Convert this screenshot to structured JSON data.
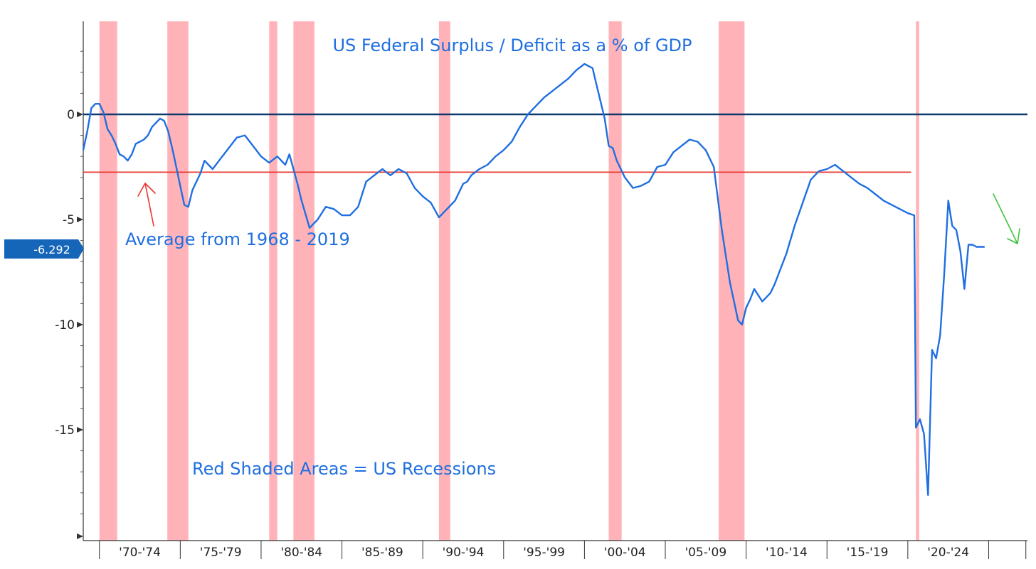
{
  "chart_data": {
    "type": "line",
    "title": "US Federal Surplus / Deficit as a % of GDP",
    "annotations": {
      "average_label": "Average from 1968 - 2019",
      "recession_note": "Red Shaded Areas = US Recessions"
    },
    "current_value_label": "-6.292",
    "current_value": -6.292,
    "average_value": -2.75,
    "average_period": [
      1968,
      2019
    ],
    "xlim": [
      1968.5,
      2026.9
    ],
    "ylim": [
      -20,
      4.5
    ],
    "y_ticks": [
      0,
      -5,
      -10,
      -15
    ],
    "x_ticks": [
      "'70-'74",
      "'75-'79",
      "'80-'84",
      "'85-'89",
      "'90-'94",
      "'95-'99",
      "'00-'04",
      "'05-'09",
      "'10-'14",
      "'15-'19",
      "'20-'24"
    ],
    "x_tick_bounds": [
      1969.5,
      1974.5,
      1979.5,
      1984.5,
      1989.5,
      1994.5,
      1999.5,
      2004.5,
      2009.5,
      2014.5,
      2019.5,
      2024.5,
      2026.8
    ],
    "recessions": [
      [
        1969.5,
        1970.6
      ],
      [
        1973.7,
        1975.0
      ],
      [
        1980.0,
        1980.5
      ],
      [
        1981.5,
        1982.8
      ],
      [
        1990.5,
        1991.2
      ],
      [
        2001.0,
        2001.8
      ],
      [
        2007.8,
        2009.4
      ],
      [
        2020.0,
        2020.2
      ]
    ],
    "colors": {
      "line": "#1f6fe0",
      "zero_line": "#0e3a6e",
      "average_line": "#e8382f",
      "recession": "#ff9aa0",
      "current_badge": "#1566b8",
      "red_arrow": "#e8382f",
      "green_arrow": "#3ec43e"
    },
    "series": [
      {
        "x": [
          1968.5,
          1968.75,
          1969.0,
          1969.25,
          1969.5,
          1969.75,
          1970.0,
          1970.25,
          1970.5,
          1970.75,
          1971.0,
          1971.25,
          1971.5,
          1971.75,
          1972.0,
          1972.25,
          1972.5,
          1972.75,
          1973.0,
          1973.25,
          1973.5,
          1973.75,
          1974.0,
          1974.25,
          1974.5,
          1974.75,
          1975.0,
          1975.25,
          1975.5,
          1975.75,
          1976.0,
          1976.5,
          1977.0,
          1977.5,
          1978.0,
          1978.5,
          1979.0,
          1979.5,
          1980.0,
          1980.5,
          1981.0,
          1981.25,
          1981.5,
          1981.75,
          1982.0,
          1982.5,
          1983.0,
          1983.5,
          1984.0,
          1984.5,
          1985.0,
          1985.5,
          1986.0,
          1986.5,
          1987.0,
          1987.5,
          1988.0,
          1988.5,
          1989.0,
          1989.5,
          1990.0,
          1990.5,
          1991.0,
          1991.5,
          1992.0,
          1992.25,
          1992.5,
          1993.0,
          1993.5,
          1994.0,
          1994.5,
          1995.0,
          1995.5,
          1996.0,
          1996.5,
          1997.0,
          1997.5,
          1998.0,
          1998.5,
          1999.0,
          1999.5,
          2000.0,
          2000.25,
          2000.5,
          2000.75,
          2001.0,
          2001.25,
          2001.5,
          2002.0,
          2002.5,
          2003.0,
          2003.5,
          2004.0,
          2004.5,
          2005.0,
          2005.5,
          2006.0,
          2006.5,
          2007.0,
          2007.5,
          2008.0,
          2008.5,
          2009.0,
          2009.25,
          2009.5,
          2009.75,
          2010.0,
          2010.5,
          2011.0,
          2011.25,
          2011.5,
          2012.0,
          2012.5,
          2013.0,
          2013.5,
          2014.0,
          2014.5,
          2015.0,
          2015.5,
          2016.0,
          2016.5,
          2017.0,
          2017.5,
          2018.0,
          2018.5,
          2019.0,
          2019.5,
          2019.9,
          2020.0,
          2020.25,
          2020.5,
          2020.75,
          2021.0,
          2021.25,
          2021.5,
          2021.75,
          2022.0,
          2022.25,
          2022.5,
          2022.75,
          2023.0,
          2023.25,
          2023.5,
          2023.75,
          2024.0,
          2024.25
        ],
        "y": [
          -1.7,
          -0.8,
          0.3,
          0.5,
          0.5,
          0.1,
          -0.7,
          -1.0,
          -1.4,
          -1.9,
          -2.0,
          -2.2,
          -1.9,
          -1.4,
          -1.3,
          -1.2,
          -1.0,
          -0.6,
          -0.4,
          -0.2,
          -0.3,
          -0.8,
          -1.6,
          -2.5,
          -3.4,
          -4.3,
          -4.4,
          -3.6,
          -3.2,
          -2.8,
          -2.2,
          -2.6,
          -2.1,
          -1.6,
          -1.1,
          -1.0,
          -1.5,
          -2.0,
          -2.3,
          -2.0,
          -2.4,
          -1.9,
          -2.6,
          -3.3,
          -4.1,
          -5.4,
          -5.0,
          -4.4,
          -4.5,
          -4.8,
          -4.8,
          -4.4,
          -3.2,
          -2.9,
          -2.6,
          -2.9,
          -2.6,
          -2.8,
          -3.5,
          -3.9,
          -4.2,
          -4.9,
          -4.5,
          -4.1,
          -3.3,
          -3.2,
          -2.9,
          -2.6,
          -2.4,
          -2.0,
          -1.7,
          -1.3,
          -0.6,
          0.0,
          0.4,
          0.8,
          1.1,
          1.4,
          1.7,
          2.1,
          2.4,
          2.2,
          1.4,
          0.6,
          -0.2,
          -1.5,
          -1.6,
          -2.2,
          -3.0,
          -3.5,
          -3.4,
          -3.2,
          -2.5,
          -2.4,
          -1.8,
          -1.5,
          -1.2,
          -1.3,
          -1.7,
          -2.5,
          -5.5,
          -8.0,
          -9.8,
          -10.0,
          -9.2,
          -8.8,
          -8.3,
          -8.9,
          -8.5,
          -8.1,
          -7.6,
          -6.6,
          -5.3,
          -4.2,
          -3.1,
          -2.7,
          -2.6,
          -2.4,
          -2.7,
          -3.0,
          -3.3,
          -3.5,
          -3.8,
          -4.1,
          -4.3,
          -4.5,
          -4.7,
          -4.8,
          -14.9,
          -14.5,
          -15.2,
          -18.1,
          -11.2,
          -11.6,
          -10.5,
          -7.6,
          -4.1,
          -5.3,
          -5.5,
          -6.5,
          -8.3,
          -6.2,
          -6.2,
          -6.3,
          -6.3,
          -6.3
        ]
      }
    ]
  }
}
